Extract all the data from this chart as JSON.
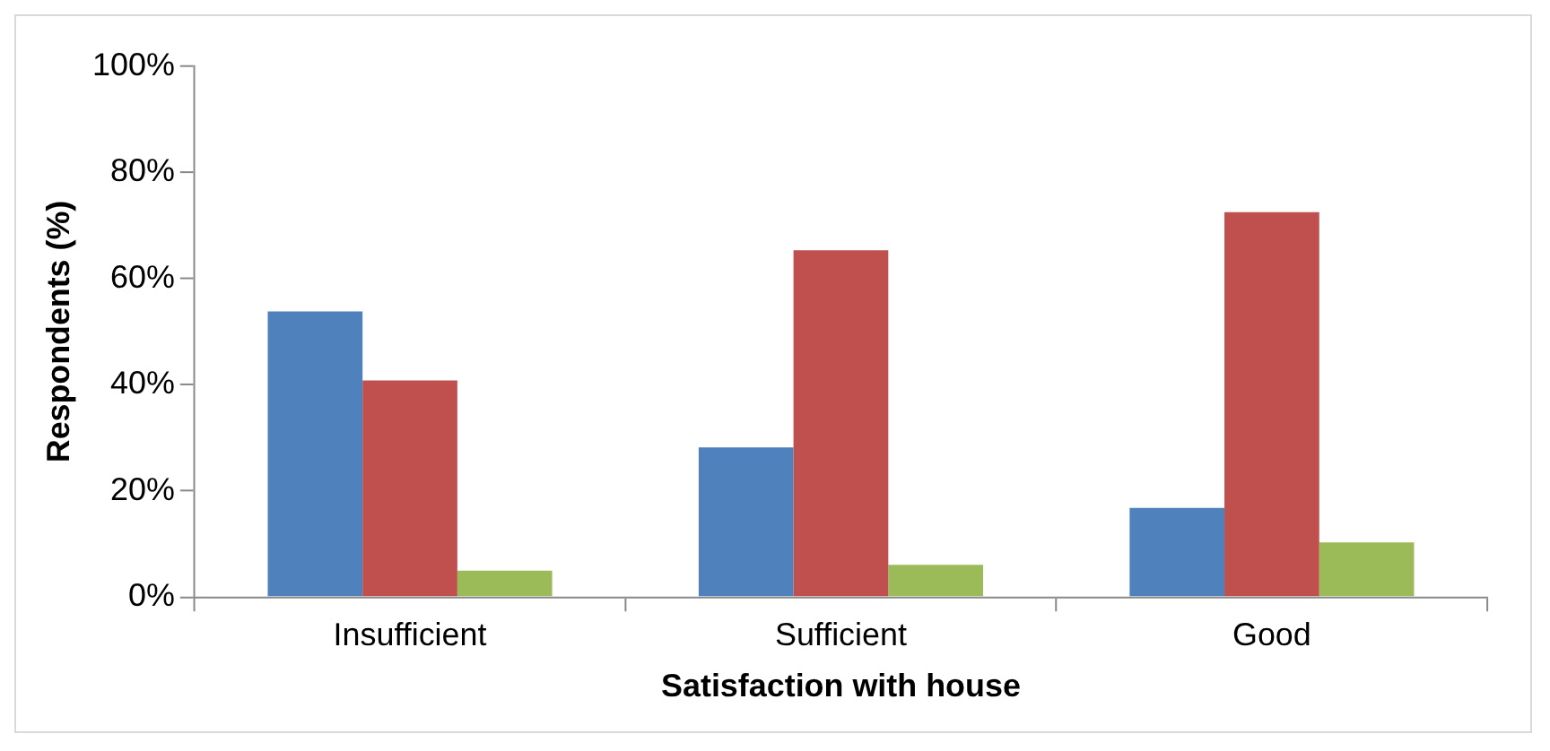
{
  "chart_data": {
    "type": "bar",
    "xlabel": "Satisfaction with house",
    "ylabel": "Respondents (%)",
    "categories": [
      "Insufficient",
      "Sufficient",
      "Good"
    ],
    "series": [
      {
        "color": "#4f81bd",
        "values": [
          53.8,
          28.2,
          16.8
        ]
      },
      {
        "color": "#c0504d",
        "values": [
          40.8,
          65.3,
          72.5
        ]
      },
      {
        "color": "#9bbb59",
        "values": [
          5.0,
          6.1,
          10.3
        ]
      }
    ],
    "ylim": [
      0,
      100
    ],
    "yticks": [
      {
        "value": 0,
        "label": "0%"
      },
      {
        "value": 20,
        "label": "20%"
      },
      {
        "value": 40,
        "label": "40%"
      },
      {
        "value": 60,
        "label": "60%"
      },
      {
        "value": 80,
        "label": "80%"
      },
      {
        "value": 100,
        "label": "100%"
      }
    ],
    "grid": false,
    "legend": false
  }
}
